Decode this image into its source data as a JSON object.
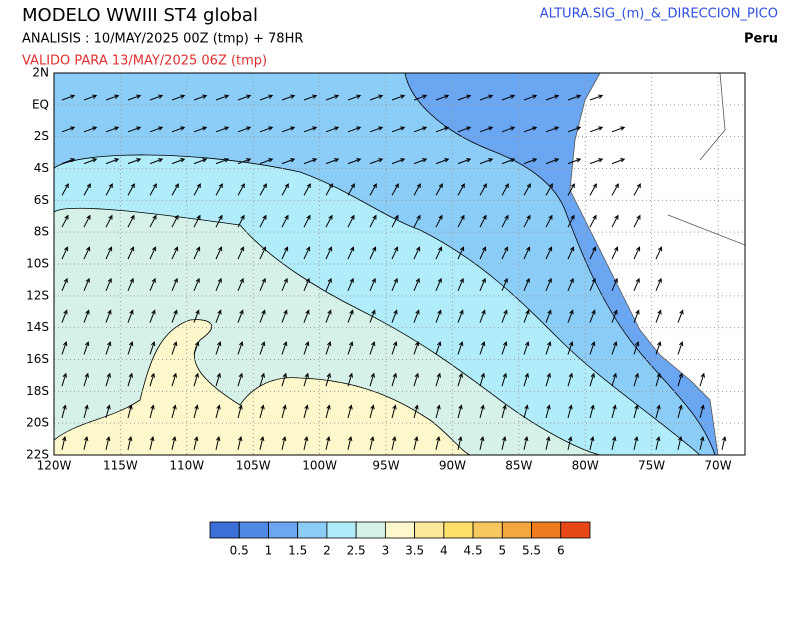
{
  "header": {
    "title": "MODELO  WWIII  ST4  global",
    "analysis": "ANALISIS : 10/MAY/2025 00Z  (tmp) + 78HR",
    "valid": "VALIDO PARA  13/MAY/2025 06Z  (tmp)",
    "variable": "ALTURA.SIG_(m)_&_DIRECCION_PICO",
    "region": "Peru"
  },
  "map": {
    "lat_labels": [
      "2N",
      "EQ",
      "2S",
      "4S",
      "6S",
      "8S",
      "10S",
      "12S",
      "14S",
      "16S",
      "18S",
      "20S",
      "22S"
    ],
    "lon_labels": [
      "120W",
      "115W",
      "110W",
      "105W",
      "100W",
      "95W",
      "90W",
      "85W",
      "80W",
      "75W",
      "70W"
    ]
  },
  "colorbar": {
    "colors": [
      "#3c6fd8",
      "#4f8ae6",
      "#6aa6f2",
      "#8ccdf8",
      "#b0ecfa",
      "#d6f2e8",
      "#fdf7cc",
      "#fbe89a",
      "#fce06a",
      "#f8c860",
      "#f4a640",
      "#f07c20",
      "#e84818"
    ],
    "labels": [
      "0.5",
      "1",
      "1.5",
      "2",
      "2.5",
      "3",
      "3.5",
      "4",
      "4.5",
      "5",
      "5.5",
      "6"
    ]
  }
}
